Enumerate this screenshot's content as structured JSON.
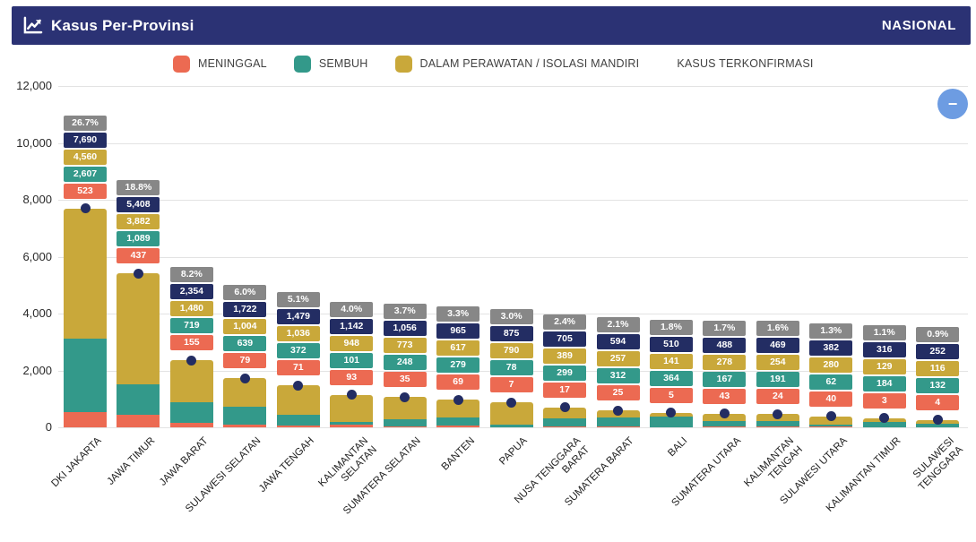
{
  "header": {
    "title": "Kasus Per-Provinsi",
    "region_label": "NASIONAL",
    "icon": "line-chart-icon",
    "background": "#2b3274"
  },
  "legend": {
    "items": [
      {
        "label": "MENINGGAL",
        "color": "#ec6a52",
        "swatch": true
      },
      {
        "label": "SEMBUH",
        "color": "#33998a",
        "swatch": true
      },
      {
        "label": "DALAM PERAWATAN / ISOLASI MANDIRI",
        "color": "#c9a83a",
        "swatch": true
      },
      {
        "label": "KASUS TERKONFIRMASI",
        "color": "#232d63",
        "swatch": false
      }
    ]
  },
  "controls": {
    "collapse_label": "−",
    "color": "#6d9ce2"
  },
  "chart_data": {
    "type": "bar",
    "stacked": true,
    "grid": true,
    "legend_position": "top",
    "title": "Kasus Per-Provinsi",
    "xlabel": "",
    "ylabel": "",
    "ylim": [
      0,
      12000
    ],
    "yticks": [
      0,
      2000,
      4000,
      6000,
      8000,
      10000,
      12000
    ],
    "ytick_labels": [
      "0",
      "2,000",
      "4,000",
      "6,000",
      "8,000",
      "10,000",
      "12,000"
    ],
    "categories": [
      "DKI JAKARTA",
      "JAWA TIMUR",
      "JAWA BARAT",
      "SULAWESI SELATAN",
      "JAWA TENGAH",
      "KALIMANTAN\nSELATAN",
      "SUMATERA SELATAN",
      "BANTEN",
      "PAPUA",
      "NUSA TENGGARA\nBARAT",
      "SUMATERA BARAT",
      "BALI",
      "SUMATERA UTARA",
      "KALIMANTAN\nTENGAH",
      "SULAWESI UTARA",
      "KALIMANTAN TIMUR",
      "SULAWESI\nTENGGARA"
    ],
    "series": [
      {
        "name": "MENINGGAL",
        "render": "bar-segment",
        "color": "#ec6a52",
        "values": [
          523,
          437,
          155,
          79,
          71,
          93,
          35,
          69,
          7,
          17,
          25,
          5,
          43,
          24,
          40,
          3,
          4
        ]
      },
      {
        "name": "SEMBUH",
        "render": "bar-segment",
        "color": "#33998a",
        "values": [
          2607,
          1089,
          719,
          639,
          372,
          101,
          248,
          279,
          78,
          299,
          312,
          364,
          167,
          191,
          62,
          184,
          132
        ]
      },
      {
        "name": "DALAM PERAWATAN / ISOLASI MANDIRI",
        "render": "bar-segment",
        "color": "#c9a83a",
        "values": [
          4560,
          3882,
          1480,
          1004,
          1036,
          948,
          773,
          617,
          790,
          389,
          257,
          141,
          278,
          254,
          280,
          129,
          116
        ]
      },
      {
        "name": "KASUS TERKONFIRMASI",
        "render": "point",
        "color": "#232d63",
        "values": [
          7690,
          5408,
          2354,
          1722,
          1479,
          1142,
          1056,
          965,
          875,
          705,
          594,
          510,
          488,
          469,
          382,
          316,
          252
        ]
      }
    ],
    "percent_labels": [
      "26.7%",
      "18.8%",
      "8.2%",
      "6.0%",
      "5.1%",
      "4.0%",
      "3.7%",
      "3.3%",
      "3.0%",
      "2.4%",
      "2.1%",
      "1.8%",
      "1.7%",
      "1.6%",
      "1.3%",
      "1.1%",
      "0.9%"
    ],
    "label_box_colors": {
      "percent": "#878787",
      "total": "#232d63",
      "dalam_perawatan": "#c9a83a",
      "sembuh": "#33998a",
      "meninggal": "#ec6a52"
    },
    "gridline_color": "#e3e3e3"
  }
}
